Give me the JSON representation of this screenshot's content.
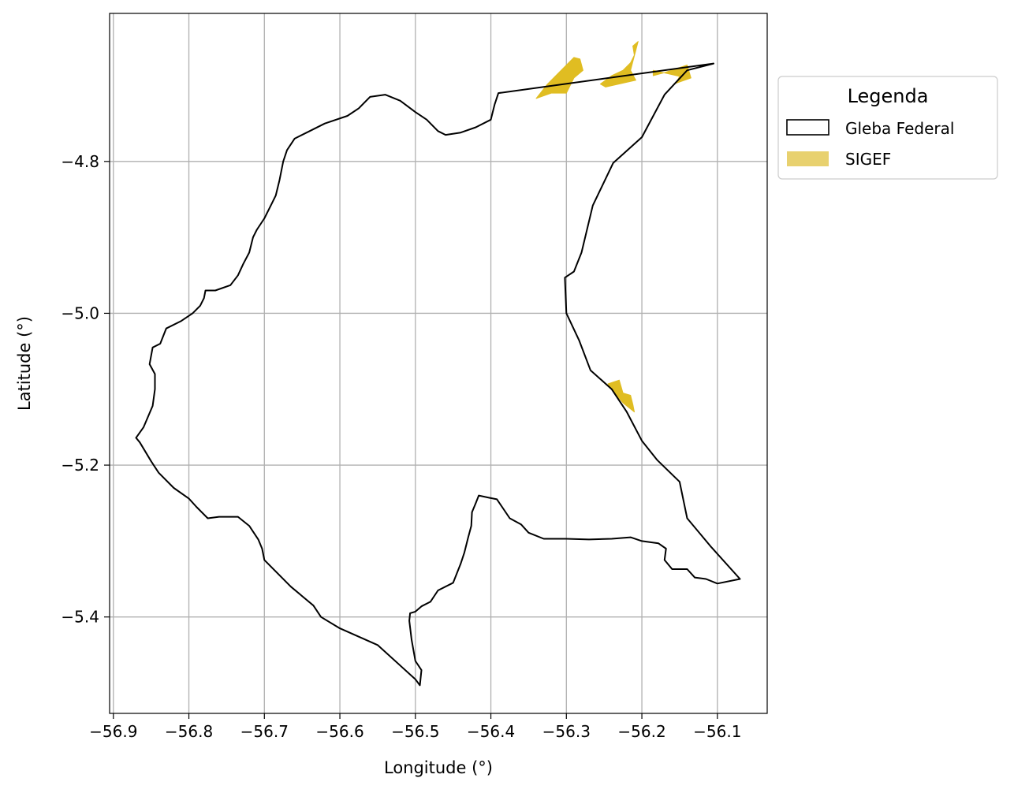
{
  "chart_data": {
    "type": "map",
    "xlabel": "Longitude (°)",
    "ylabel": "Latitude (°)",
    "xlim": [
      -56.905,
      -56.034
    ],
    "ylim": [
      -5.527,
      -4.605
    ],
    "x_ticks": [
      -56.9,
      -56.8,
      -56.7,
      -56.6,
      -56.5,
      -56.4,
      -56.3,
      -56.2,
      -56.1
    ],
    "x_tick_labels": [
      "−56.9",
      "−56.8",
      "−56.7",
      "−56.6",
      "−56.5",
      "−56.4",
      "−56.3",
      "−56.2",
      "−56.1"
    ],
    "y_ticks": [
      -4.8,
      -5.0,
      -5.2,
      -5.4
    ],
    "y_tick_labels": [
      "−4.8",
      "−5.0",
      "−5.2",
      "−5.4"
    ],
    "grid": true,
    "legend": {
      "title": "Legenda",
      "placement": "outside-right-top",
      "entries": [
        {
          "label": "Gleba Federal",
          "style": "outline",
          "color": "#000000"
        },
        {
          "label": "SIGEF",
          "style": "fill",
          "color": "#e8d16f"
        }
      ]
    },
    "series": [
      {
        "name": "Gleba Federal",
        "kind": "polygon-outline",
        "color": "#000000",
        "points": [
          [
            -56.105,
            -4.671
          ],
          [
            -56.14,
            -4.68
          ],
          [
            -56.17,
            -4.712
          ],
          [
            -56.2,
            -4.768
          ],
          [
            -56.238,
            -4.802
          ],
          [
            -56.265,
            -4.858
          ],
          [
            -56.28,
            -4.92
          ],
          [
            -56.29,
            -4.945
          ],
          [
            -56.302,
            -4.953
          ],
          [
            -56.3,
            -5.0
          ],
          [
            -56.283,
            -5.036
          ],
          [
            -56.268,
            -5.075
          ],
          [
            -56.24,
            -5.1
          ],
          [
            -56.22,
            -5.13
          ],
          [
            -56.2,
            -5.168
          ],
          [
            -56.18,
            -5.193
          ],
          [
            -56.15,
            -5.222
          ],
          [
            -56.14,
            -5.27
          ],
          [
            -56.108,
            -5.308
          ],
          [
            -56.07,
            -5.35
          ],
          [
            -56.1,
            -5.356
          ],
          [
            -56.115,
            -5.35
          ],
          [
            -56.13,
            -5.348
          ],
          [
            -56.14,
            -5.337
          ],
          [
            -56.16,
            -5.337
          ],
          [
            -56.17,
            -5.325
          ],
          [
            -56.168,
            -5.31
          ],
          [
            -56.178,
            -5.303
          ],
          [
            -56.2,
            -5.3
          ],
          [
            -56.215,
            -5.295
          ],
          [
            -56.24,
            -5.297
          ],
          [
            -56.27,
            -5.298
          ],
          [
            -56.3,
            -5.297
          ],
          [
            -56.33,
            -5.297
          ],
          [
            -56.35,
            -5.289
          ],
          [
            -56.36,
            -5.278
          ],
          [
            -56.375,
            -5.27
          ],
          [
            -56.392,
            -5.245
          ],
          [
            -56.402,
            -5.243
          ],
          [
            -56.416,
            -5.24
          ],
          [
            -56.42,
            -5.25
          ],
          [
            -56.425,
            -5.262
          ],
          [
            -56.426,
            -5.28
          ],
          [
            -56.43,
            -5.295
          ],
          [
            -56.435,
            -5.315
          ],
          [
            -56.44,
            -5.33
          ],
          [
            -56.45,
            -5.355
          ],
          [
            -56.47,
            -5.365
          ],
          [
            -56.48,
            -5.38
          ],
          [
            -56.492,
            -5.386
          ],
          [
            -56.5,
            -5.393
          ],
          [
            -56.507,
            -5.395
          ],
          [
            -56.508,
            -5.405
          ],
          [
            -56.505,
            -5.43
          ],
          [
            -56.5,
            -5.458
          ],
          [
            -56.492,
            -5.47
          ],
          [
            -56.494,
            -5.49
          ],
          [
            -56.5,
            -5.482
          ],
          [
            -56.55,
            -5.437
          ],
          [
            -56.6,
            -5.415
          ],
          [
            -56.625,
            -5.4
          ],
          [
            -56.635,
            -5.385
          ],
          [
            -56.665,
            -5.36
          ],
          [
            -56.7,
            -5.325
          ],
          [
            -56.703,
            -5.31
          ],
          [
            -56.708,
            -5.298
          ],
          [
            -56.72,
            -5.28
          ],
          [
            -56.735,
            -5.268
          ],
          [
            -56.76,
            -5.268
          ],
          [
            -56.775,
            -5.27
          ],
          [
            -56.79,
            -5.255
          ],
          [
            -56.8,
            -5.244
          ],
          [
            -56.82,
            -5.23
          ],
          [
            -56.84,
            -5.21
          ],
          [
            -56.85,
            -5.195
          ],
          [
            -56.865,
            -5.17
          ],
          [
            -56.87,
            -5.164
          ],
          [
            -56.86,
            -5.15
          ],
          [
            -56.848,
            -5.122
          ],
          [
            -56.845,
            -5.1
          ],
          [
            -56.845,
            -5.08
          ],
          [
            -56.852,
            -5.067
          ],
          [
            -56.848,
            -5.045
          ],
          [
            -56.838,
            -5.04
          ],
          [
            -56.83,
            -5.02
          ],
          [
            -56.81,
            -5.01
          ],
          [
            -56.795,
            -5.0
          ],
          [
            -56.785,
            -4.99
          ],
          [
            -56.78,
            -4.98
          ],
          [
            -56.778,
            -4.97
          ],
          [
            -56.765,
            -4.97
          ],
          [
            -56.745,
            -4.963
          ],
          [
            -56.735,
            -4.95
          ],
          [
            -56.728,
            -4.935
          ],
          [
            -56.72,
            -4.92
          ],
          [
            -56.715,
            -4.9
          ],
          [
            -56.71,
            -4.89
          ],
          [
            -56.7,
            -4.875
          ],
          [
            -56.69,
            -4.855
          ],
          [
            -56.685,
            -4.845
          ],
          [
            -56.68,
            -4.825
          ],
          [
            -56.675,
            -4.8
          ],
          [
            -56.67,
            -4.785
          ],
          [
            -56.66,
            -4.77
          ],
          [
            -56.64,
            -4.76
          ],
          [
            -56.62,
            -4.75
          ],
          [
            -56.59,
            -4.74
          ],
          [
            -56.575,
            -4.73
          ],
          [
            -56.56,
            -4.715
          ],
          [
            -56.54,
            -4.712
          ],
          [
            -56.52,
            -4.72
          ],
          [
            -56.5,
            -4.735
          ],
          [
            -56.485,
            -4.745
          ],
          [
            -56.47,
            -4.76
          ],
          [
            -56.46,
            -4.765
          ],
          [
            -56.44,
            -4.762
          ],
          [
            -56.42,
            -4.755
          ],
          [
            -56.4,
            -4.745
          ],
          [
            -56.395,
            -4.725
          ],
          [
            -56.39,
            -4.71
          ],
          [
            -56.105,
            -4.671
          ]
        ]
      },
      {
        "name": "SIGEF",
        "kind": "polygon-fill",
        "color": "#e0bd22",
        "polygons": [
          [
            [
              -56.34,
              -4.717
            ],
            [
              -56.32,
              -4.71
            ],
            [
              -56.3,
              -4.71
            ],
            [
              -56.29,
              -4.69
            ],
            [
              -56.278,
              -4.68
            ],
            [
              -56.282,
              -4.665
            ],
            [
              -56.29,
              -4.663
            ],
            [
              -56.305,
              -4.678
            ],
            [
              -56.325,
              -4.698
            ]
          ],
          [
            [
              -56.255,
              -4.698
            ],
            [
              -56.24,
              -4.687
            ],
            [
              -56.225,
              -4.68
            ],
            [
              -56.215,
              -4.67
            ],
            [
              -56.21,
              -4.66
            ],
            [
              -56.212,
              -4.648
            ],
            [
              -56.205,
              -4.642
            ],
            [
              -56.215,
              -4.68
            ],
            [
              -56.208,
              -4.693
            ],
            [
              -56.248,
              -4.702
            ]
          ],
          [
            [
              -56.185,
              -4.687
            ],
            [
              -56.17,
              -4.683
            ],
            [
              -56.155,
              -4.678
            ],
            [
              -56.14,
              -4.673
            ],
            [
              -56.135,
              -4.69
            ],
            [
              -56.155,
              -4.697
            ],
            [
              -56.15,
              -4.688
            ],
            [
              -56.185,
              -4.68
            ]
          ],
          [
            [
              -56.245,
              -5.093
            ],
            [
              -56.23,
              -5.088
            ],
            [
              -56.225,
              -5.105
            ],
            [
              -56.215,
              -5.108
            ],
            [
              -56.212,
              -5.12
            ],
            [
              -56.21,
              -5.13
            ],
            [
              -56.225,
              -5.118
            ],
            [
              -56.24,
              -5.1
            ]
          ]
        ]
      }
    ]
  }
}
